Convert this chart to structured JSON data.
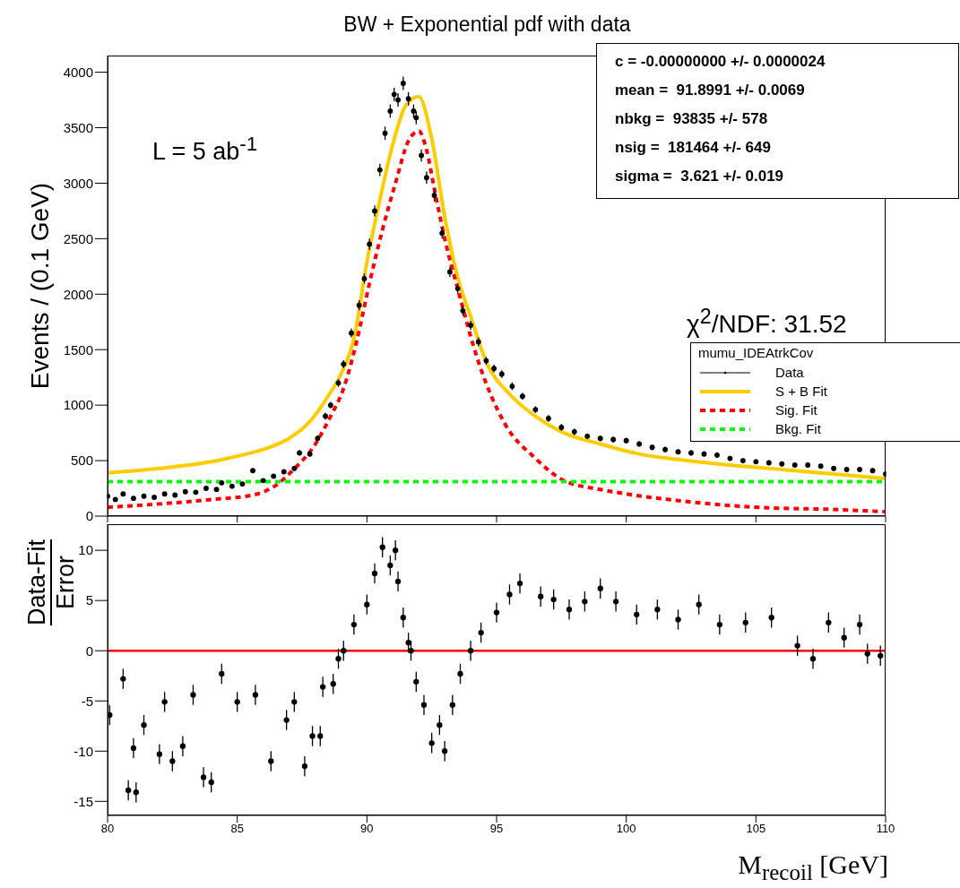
{
  "chart_data": [
    {
      "type": "scatter",
      "title": "BW + Exponential pdf with data",
      "ylabel": "Events / (0.1 GeV)",
      "legend_title": "mumu_IDEAtrkCov",
      "legend": "right",
      "tick_labels": "y",
      "annotations": [
        "L = 5 ab$^{-1}$",
        "χ$^{2}$/NDF: 31.52",
        "c = -0.00000000 +/- 0.0000024",
        "mean =  91.8991 +/- 0.0069",
        "nbkg =  93835 +/- 578",
        "nsig =  181464 +/- 649",
        "sigma =  3.621 +/- 0.019"
      ],
      "xlim": [
        80,
        110
      ],
      "xticks": [
        {
          "value": 80,
          "label": null
        },
        {
          "value": 85,
          "label": null
        },
        {
          "value": 90,
          "label": null
        },
        {
          "value": 95,
          "label": null
        },
        {
          "value": 100,
          "label": null
        },
        {
          "value": 105,
          "label": null
        },
        {
          "value": 110,
          "label": null
        }
      ],
      "ylim": [
        0,
        4150
      ],
      "yticks": [
        0,
        500,
        1000,
        1500,
        2000,
        2500,
        3000,
        3500,
        4000
      ],
      "series": [
        {
          "name": "Data",
          "marker": "circle",
          "color": "#000000",
          "x": [
            80.0,
            80.3,
            80.6,
            81.0,
            81.4,
            81.8,
            82.2,
            82.6,
            83.0,
            83.4,
            83.8,
            84.2,
            84.4,
            84.8,
            85.2,
            85.6,
            86.0,
            86.4,
            86.8,
            87.2,
            87.4,
            87.8,
            88.1,
            88.4,
            88.6,
            88.9,
            89.1,
            89.4,
            89.7,
            89.9,
            90.1,
            90.3,
            90.5,
            90.7,
            90.9,
            91.05,
            91.2,
            91.4,
            91.6,
            91.8,
            91.9,
            92.1,
            92.3,
            92.6,
            92.9,
            93.2,
            93.5,
            93.7,
            94.0,
            94.3,
            94.6,
            94.9,
            95.2,
            95.6,
            96.0,
            96.5,
            97.0,
            97.5,
            98.0,
            98.5,
            99.0,
            99.5,
            100.0,
            100.5,
            101.0,
            101.5,
            102.0,
            102.5,
            103.0,
            103.5,
            104.0,
            104.5,
            105.0,
            105.5,
            106.0,
            106.5,
            107.0,
            107.5,
            108.0,
            108.5,
            109.0,
            109.5,
            110.0
          ],
          "values": [
            180,
            150,
            200,
            160,
            180,
            170,
            200,
            190,
            220,
            215,
            250,
            240,
            300,
            270,
            290,
            410,
            320,
            360,
            400,
            430,
            570,
            560,
            700,
            900,
            1000,
            1200,
            1370,
            1650,
            1900,
            2140,
            2450,
            2750,
            3120,
            3450,
            3650,
            3800,
            3750,
            3900,
            3760,
            3650,
            3590,
            3250,
            3050,
            2890,
            2550,
            2200,
            2050,
            1850,
            1720,
            1570,
            1400,
            1330,
            1280,
            1170,
            1080,
            960,
            880,
            800,
            760,
            720,
            700,
            690,
            680,
            650,
            620,
            600,
            580,
            570,
            560,
            550,
            520,
            500,
            490,
            480,
            470,
            460,
            460,
            450,
            430,
            420,
            420,
            410,
            380
          ],
          "errors": [
            15,
            15,
            15,
            15,
            15,
            15,
            15,
            15,
            15,
            15,
            15,
            15,
            20,
            15,
            15,
            20,
            20,
            20,
            20,
            20,
            25,
            25,
            25,
            30,
            30,
            35,
            35,
            40,
            45,
            45,
            50,
            50,
            55,
            60,
            60,
            60,
            60,
            60,
            60,
            60,
            60,
            55,
            55,
            55,
            50,
            45,
            45,
            45,
            40,
            40,
            35,
            35,
            35,
            35,
            30,
            30,
            30,
            30,
            30,
            25,
            25,
            25,
            25,
            25,
            25,
            25,
            25,
            25,
            25,
            25,
            22,
            22,
            22,
            22,
            22,
            22,
            22,
            22,
            22,
            22,
            22,
            22,
            22
          ]
        },
        {
          "name": "S + B Fit",
          "type": "line",
          "color": "#ffcc00",
          "line_style": "solid",
          "x": [
            80,
            82,
            84,
            85,
            86,
            87,
            87.75,
            88.5,
            89,
            89.5,
            90,
            90.5,
            91,
            91.5,
            92,
            92.5,
            93,
            93.5,
            94,
            94.6,
            95.5,
            96.5,
            97.5,
            99,
            100.5,
            102,
            104,
            106,
            108,
            110
          ],
          "values": [
            390,
            430,
            490,
            540,
            600,
            700,
            840,
            1080,
            1280,
            1600,
            2290,
            2850,
            3350,
            3700,
            3780,
            3400,
            2700,
            2150,
            1800,
            1390,
            1100,
            900,
            760,
            650,
            560,
            510,
            460,
            420,
            380,
            340
          ]
        },
        {
          "name": "Sig. Fit",
          "type": "line",
          "color": "#ff0000",
          "line_style": "dashed",
          "x": [
            80,
            82,
            84,
            85.6,
            86.5,
            87.3,
            87.9,
            88.6,
            89.1,
            89.6,
            90.1,
            90.6,
            91.1,
            91.6,
            92,
            92.3,
            92.6,
            93,
            93.5,
            94.3,
            95.3,
            96.5,
            97.6,
            99,
            100,
            102,
            105,
            108,
            110
          ],
          "values": [
            80,
            110,
            150,
            190,
            280,
            450,
            610,
            900,
            1150,
            1570,
            2100,
            2580,
            3000,
            3380,
            3470,
            3300,
            2950,
            2500,
            2050,
            1390,
            840,
            520,
            320,
            240,
            200,
            140,
            80,
            60,
            40
          ]
        },
        {
          "name": "Bkg. Fit",
          "type": "line",
          "color": "#00ff00",
          "line_style": "dashed",
          "x": [
            80,
            110
          ],
          "values": [
            310,
            310
          ]
        }
      ]
    },
    {
      "type": "scatter",
      "xlabel": "M$_{recoil}$ [GeV]",
      "ylabel": "Data-Fit\nError",
      "marker": "circle",
      "xlim": [
        80,
        110
      ],
      "xticks": [
        80,
        85,
        90,
        95,
        100,
        105,
        110
      ],
      "ylim": [
        -16.4,
        12.6
      ],
      "yticks": [
        -15,
        -10,
        -5,
        0,
        5,
        10
      ],
      "ref_lines": [
        {
          "axis": "y",
          "value": 0,
          "color": "#ff0000"
        }
      ],
      "series": [
        {
          "color": "#000000",
          "x": [
            80.08,
            80.6,
            80.8,
            81.0,
            81.1,
            81.4,
            82.0,
            82.2,
            82.5,
            82.9,
            83.3,
            83.7,
            84.0,
            84.4,
            85.0,
            85.7,
            86.3,
            86.9,
            87.2,
            87.6,
            87.9,
            88.2,
            88.3,
            88.7,
            88.9,
            89.1,
            89.5,
            90.0,
            90.3,
            90.6,
            90.9,
            91.1,
            91.2,
            91.4,
            91.6,
            91.7,
            91.9,
            92.2,
            92.5,
            92.8,
            93.0,
            93.3,
            93.6,
            94.0,
            94.4,
            95.0,
            95.5,
            95.9,
            96.7,
            97.2,
            97.8,
            98.4,
            99.0,
            99.6,
            100.4,
            101.2,
            102.0,
            102.8,
            103.6,
            104.6,
            105.6,
            106.6,
            107.2,
            107.8,
            108.4,
            109.0,
            109.3,
            109.8
          ],
          "values": [
            -6.4,
            -2.8,
            -13.9,
            -9.7,
            -14.1,
            -7.4,
            -10.3,
            -5.1,
            -11,
            -9.5,
            -4.4,
            -12.6,
            -13.1,
            -2.3,
            -5.1,
            -4.4,
            -11,
            -6.9,
            -5.1,
            -11.5,
            -8.5,
            -8.5,
            -3.6,
            -3.3,
            -0.8,
            0,
            2.6,
            4.6,
            7.7,
            10.3,
            8.5,
            10,
            6.9,
            3.3,
            0.8,
            0,
            -3.1,
            -5.4,
            -9.2,
            -7.4,
            -10,
            -5.4,
            -2.3,
            0,
            1.8,
            3.8,
            5.6,
            6.7,
            5.4,
            5.1,
            4.1,
            4.9,
            6.2,
            4.9,
            3.6,
            4.1,
            3.1,
            4.6,
            2.6,
            2.8,
            3.3,
            0.5,
            -0.8,
            2.8,
            1.3,
            2.6,
            -0.3,
            -0.5
          ],
          "errors": [
            1,
            1,
            1,
            1,
            1,
            1,
            1,
            1,
            1,
            1,
            1,
            1,
            1,
            1,
            1,
            1,
            1,
            1,
            1,
            1,
            1,
            1,
            1,
            1,
            1,
            1,
            1,
            1,
            1,
            1,
            1,
            1,
            1,
            1,
            1,
            1,
            1,
            1,
            1,
            1,
            1,
            1,
            1,
            1,
            1,
            1,
            1,
            1,
            1,
            1,
            1,
            1,
            1,
            1,
            1,
            1,
            1,
            1,
            1,
            1,
            1,
            1,
            1,
            1,
            1,
            1,
            1,
            1
          ]
        }
      ]
    }
  ]
}
